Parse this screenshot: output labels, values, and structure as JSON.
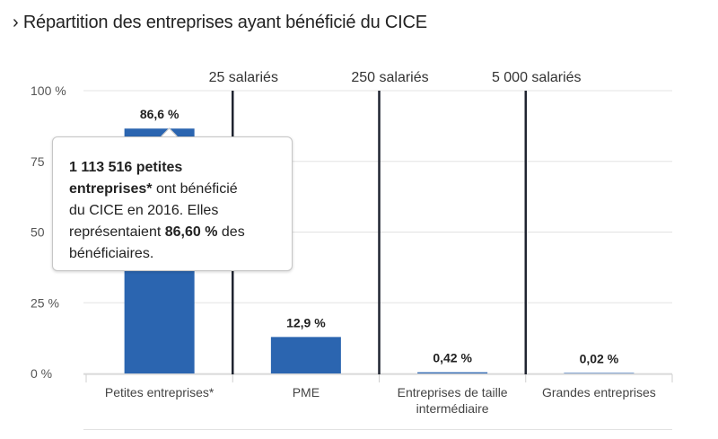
{
  "title": "› Répartition des entreprises ayant bénéficié du CICE",
  "colors": {
    "bar": "#2b65b0",
    "grid": "#e3e3e3",
    "threshold": "#1f2430",
    "text": "#222222"
  },
  "chart_data": {
    "type": "bar",
    "categories": [
      "Petites entreprises*",
      "PME",
      "Entreprises de taille intermédiaire",
      "Grandes entreprises"
    ],
    "category_lines": [
      [
        "Petites entreprises*"
      ],
      [
        "PME"
      ],
      [
        "Entreprises de taille",
        "intermédiaire"
      ],
      [
        "Grandes entreprises"
      ]
    ],
    "values": [
      86.6,
      12.9,
      0.42,
      0.02
    ],
    "value_labels": [
      "86,6 %",
      "12,9 %",
      "0,42 %",
      "0,02 %"
    ],
    "ylim": [
      0,
      100
    ],
    "yticks": [
      0,
      25,
      50,
      75,
      100
    ],
    "ytick_labels": [
      "0 %",
      "25 %",
      "50",
      "75",
      "100 %"
    ],
    "thresholds": [
      "25 salariés",
      "250 salariés",
      "5 000 salariés"
    ],
    "grid": true
  },
  "tooltip": {
    "number": "1 113 516 petites",
    "subject": "entreprises*",
    "text1": " ont bénéficié",
    "text2": "du CICE en 2016. Elles",
    "text3": "représentaient ",
    "pct": "86,60 %",
    "text4": " des",
    "text5": "bénéficiaires."
  }
}
